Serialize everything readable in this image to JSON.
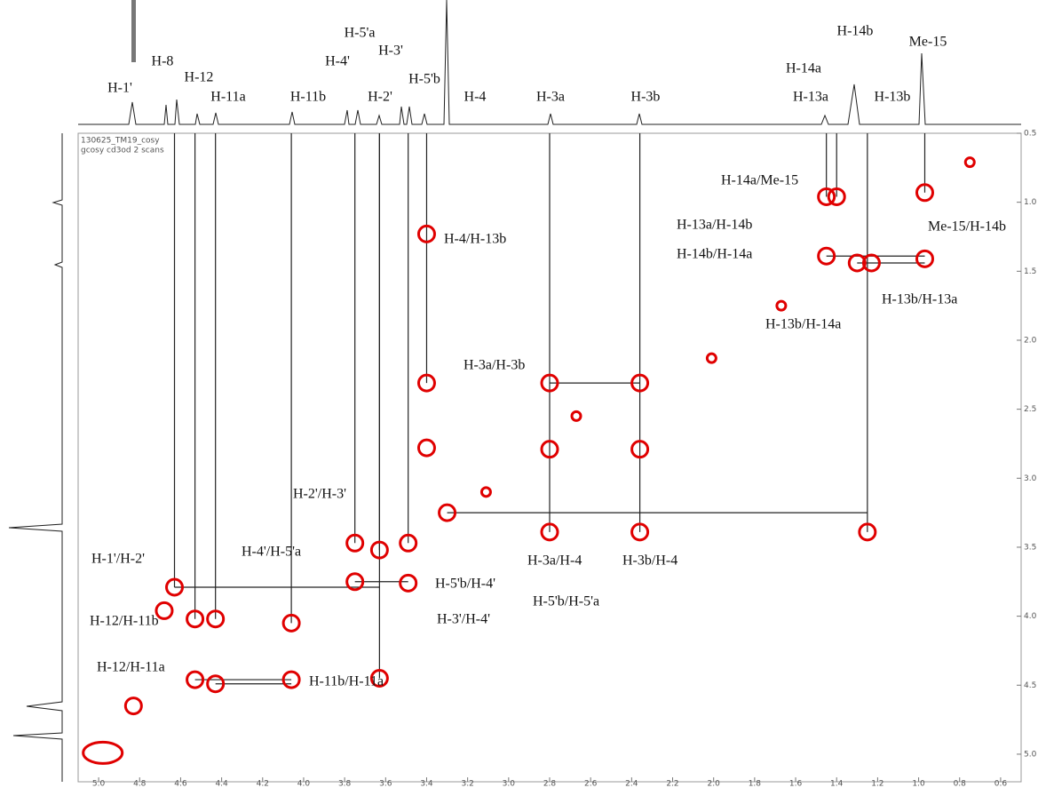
{
  "chart_data": {
    "type": "scatter",
    "notes": [
      "130625_TM19_cosy",
      "gcosy cd3od 2 scans"
    ],
    "color": "#e00000",
    "x": [
      4.98,
      4.83,
      4.68,
      4.63,
      4.53,
      4.43,
      4.06,
      4.53,
      4.43,
      4.06,
      3.63,
      3.75,
      3.63,
      3.49,
      3.75,
      3.49,
      3.3,
      3.4,
      3.4,
      3.4,
      2.8,
      2.36,
      2.8,
      2.36,
      2.8,
      2.36,
      1.25,
      1.45,
      1.4,
      0.97,
      1.45,
      1.3,
      1.23,
      0.97,
      3.11,
      2.67,
      2.01,
      1.67,
      0.75
    ],
    "values": [
      4.99,
      4.65,
      3.96,
      3.79,
      4.02,
      4.02,
      4.05,
      4.46,
      4.49,
      4.46,
      4.45,
      3.47,
      3.52,
      3.47,
      3.75,
      3.76,
      3.25,
      2.31,
      2.78,
      1.23,
      2.31,
      2.31,
      2.79,
      2.79,
      3.39,
      3.39,
      3.39,
      0.96,
      0.96,
      0.93,
      1.39,
      1.44,
      1.44,
      1.41,
      3.1,
      2.55,
      2.13,
      1.75,
      0.71
    ],
    "xlim": [
      5.1,
      0.5
    ],
    "ylim": [
      0.5,
      5.2
    ],
    "xticks": [
      {
        "value": 5,
        "label": "5.0"
      },
      4.8,
      4.6,
      4.4,
      4.2,
      {
        "value": 4,
        "label": "4.0"
      },
      3.8,
      3.6,
      3.4,
      3.2,
      {
        "value": 3,
        "label": "3.0"
      },
      2.8,
      2.6,
      2.4,
      2.2,
      {
        "value": 2,
        "label": "2.0"
      },
      1.8,
      1.6,
      1.4,
      1.2,
      {
        "value": 1,
        "label": "1.0"
      },
      0.8,
      0.6
    ],
    "yticks": [
      0.5,
      {
        "value": 1,
        "label": "1.0"
      },
      1.5,
      {
        "value": 2,
        "label": "2.0"
      },
      2.5,
      {
        "value": 3,
        "label": "3.0"
      },
      3.5,
      {
        "value": 4,
        "label": "4.0"
      },
      4.5,
      {
        "value": 5,
        "label": "5.0"
      }
    ],
    "peak_labels": [
      "H-1'",
      "H-8",
      "H-12",
      "H-11a",
      "H-11b",
      "H-4'",
      "H-5'a",
      "H-3'",
      "H-2'",
      "H-5'b",
      "H-4",
      "H-3a",
      "H-3b",
      "H-14a",
      "H-14b",
      "H-13a",
      "H-13b",
      "Me-15"
    ],
    "annotations": [
      "H-14a/Me-15",
      "H-13a/H-14b",
      "H-4/H-13b",
      "H-14b/H-14a",
      "Me-15/H-14b",
      "H-13b/H-13a",
      "H-13b/H-14a",
      "H-3a/H-3b",
      "H-2'/H-3'",
      "H-4'/H-5'a",
      "H-1'/H-2'",
      "H-3a/H-4",
      "H-3b/H-4",
      "H-5'b/H-4'",
      "H-5'b/H-5'a",
      "H-3'/H-4'",
      "H-12/H-11b",
      "H-12/H-11a",
      "H-11b/H-11a"
    ]
  }
}
